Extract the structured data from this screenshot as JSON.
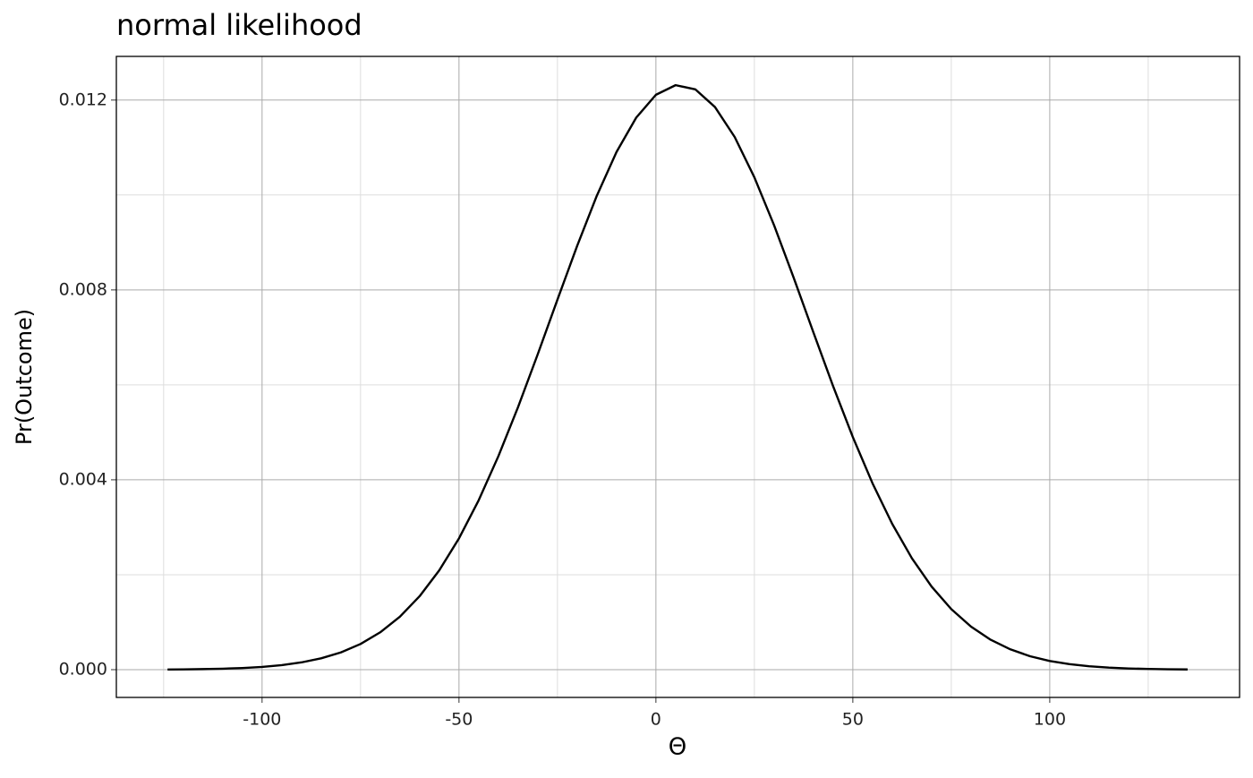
{
  "chart_data": {
    "type": "line",
    "title": "normal likelihood",
    "x_label": "Θ",
    "y_label": "Pr(Outcome)",
    "x": [
      -124,
      -120,
      -115,
      -110,
      -105,
      -100,
      -95,
      -90,
      -85,
      -80,
      -75,
      -70,
      -65,
      -60,
      -55,
      -50,
      -45,
      -40,
      -35,
      -30,
      -25,
      -20,
      -15,
      -10,
      -5,
      0,
      5,
      10,
      15,
      20,
      25,
      30,
      35,
      40,
      45,
      50,
      55,
      60,
      65,
      70,
      75,
      80,
      85,
      90,
      95,
      100,
      105,
      110,
      115,
      120,
      125,
      130,
      135
    ],
    "series": [
      {
        "color": "#000000",
        "values": [
          4e-06,
          6.4e-06,
          1.15e-05,
          2.03e-05,
          3.48e-05,
          5.84e-05,
          9.56e-05,
          0.000153,
          0.000239,
          0.000363,
          0.000541,
          0.000787,
          0.001116,
          0.001547,
          0.002094,
          0.002766,
          0.003569,
          0.004497,
          0.005532,
          0.006646,
          0.007795,
          0.008928,
          0.009985,
          0.010906,
          0.01163,
          0.012111,
          0.012314,
          0.012226,
          0.011853,
          0.011222,
          0.010373,
          0.009364,
          0.008253,
          0.007104,
          0.00597,
          0.0049,
          0.003926,
          0.003072,
          0.002347,
          0.001751,
          0.001275,
          0.000908,
          0.00063,
          0.000428,
          0.000283,
          0.000183,
          0.000116,
          7.14e-05,
          4.3e-05,
          2.53e-05,
          1.45e-05,
          8.1e-06,
          4.5e-06
        ]
      }
    ],
    "xlim": [
      -137,
      148.2
    ],
    "ylim": [
      -0.000585,
      0.01292
    ],
    "xticks": [
      -100,
      -50,
      0,
      50,
      100
    ],
    "yticks": [
      {
        "value": 0,
        "label": "0.000"
      },
      0.004,
      0.008,
      0.012
    ],
    "x_minor_ticks": [
      -125,
      -75,
      -25,
      25,
      75,
      125
    ],
    "y_minor_ticks": [
      0.002,
      0.006,
      0.01
    ],
    "grid": true
  }
}
